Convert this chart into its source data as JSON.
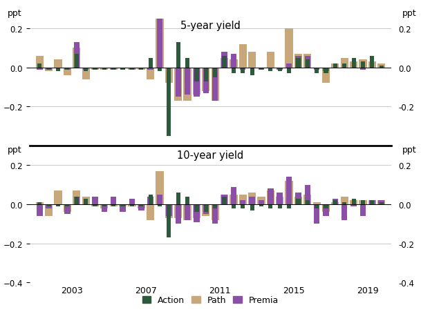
{
  "title1": "5-year yield",
  "title2": "10-year yield",
  "ylabel": "ppt",
  "colors": {
    "action": "#2d5a3d",
    "path": "#c8a87a",
    "premia": "#8b4fa8"
  },
  "x": [
    2001.25,
    2001.75,
    2002.25,
    2002.75,
    2003.25,
    2003.75,
    2004.25,
    2004.75,
    2005.25,
    2005.75,
    2006.25,
    2006.75,
    2007.25,
    2007.75,
    2008.25,
    2008.75,
    2009.25,
    2009.75,
    2010.25,
    2010.75,
    2011.25,
    2011.75,
    2012.25,
    2012.75,
    2013.25,
    2013.75,
    2014.25,
    2014.75,
    2015.25,
    2015.75,
    2016.25,
    2016.75,
    2017.25,
    2017.75,
    2018.25,
    2018.75,
    2019.25,
    2019.75
  ],
  "action_5y": [
    0.02,
    -0.01,
    -0.02,
    -0.01,
    0.07,
    -0.02,
    -0.01,
    -0.01,
    -0.01,
    -0.01,
    -0.01,
    -0.01,
    0.05,
    -0.02,
    -0.35,
    0.13,
    0.05,
    -0.07,
    -0.07,
    -0.05,
    0.06,
    -0.03,
    -0.03,
    -0.04,
    -0.01,
    -0.02,
    -0.02,
    -0.03,
    0.05,
    0.04,
    -0.03,
    -0.03,
    0.02,
    0.02,
    0.05,
    0.03,
    0.06,
    0.01
  ],
  "path_5y": [
    0.06,
    -0.02,
    0.04,
    -0.04,
    0.1,
    -0.06,
    -0.01,
    -0.01,
    -0.01,
    0.0,
    -0.01,
    -0.01,
    -0.06,
    0.25,
    -0.08,
    -0.17,
    -0.17,
    -0.14,
    -0.12,
    -0.17,
    0.05,
    0.04,
    0.12,
    0.08,
    0.0,
    0.08,
    0.0,
    0.2,
    0.07,
    0.07,
    0.0,
    -0.08,
    0.02,
    0.05,
    0.03,
    0.04,
    0.03,
    0.02
  ],
  "premia_5y": [
    -0.01,
    -0.01,
    0.0,
    -0.01,
    0.13,
    -0.01,
    0.0,
    0.0,
    -0.01,
    0.0,
    -0.01,
    0.0,
    -0.01,
    0.25,
    0.0,
    -0.15,
    -0.14,
    -0.15,
    -0.13,
    -0.17,
    0.08,
    0.07,
    -0.01,
    0.0,
    -0.01,
    0.0,
    -0.01,
    0.02,
    0.06,
    0.06,
    -0.01,
    -0.02,
    0.0,
    0.0,
    0.0,
    -0.01,
    0.0,
    0.0
  ],
  "action_10y": [
    0.01,
    -0.01,
    -0.01,
    -0.01,
    0.04,
    0.03,
    -0.01,
    -0.01,
    -0.01,
    -0.01,
    -0.01,
    -0.01,
    0.05,
    -0.01,
    -0.17,
    0.06,
    0.04,
    -0.04,
    -0.04,
    -0.02,
    0.04,
    -0.02,
    -0.02,
    -0.03,
    -0.01,
    -0.02,
    -0.02,
    -0.02,
    0.03,
    0.02,
    -0.02,
    -0.02,
    0.02,
    0.01,
    0.03,
    0.02,
    0.02,
    0.01
  ],
  "path_10y": [
    0.01,
    -0.06,
    0.07,
    -0.04,
    0.07,
    0.04,
    -0.01,
    -0.02,
    -0.01,
    -0.01,
    -0.01,
    -0.02,
    -0.08,
    0.17,
    -0.07,
    -0.07,
    -0.08,
    -0.07,
    -0.06,
    -0.08,
    0.05,
    0.05,
    0.05,
    0.06,
    0.04,
    0.07,
    0.04,
    0.12,
    0.04,
    0.05,
    0.01,
    -0.04,
    0.01,
    0.04,
    0.02,
    0.02,
    0.02,
    0.02
  ],
  "premia_10y": [
    -0.06,
    -0.02,
    0.0,
    -0.05,
    0.04,
    0.0,
    0.04,
    -0.04,
    0.04,
    -0.04,
    0.03,
    -0.03,
    0.04,
    0.05,
    -0.06,
    -0.1,
    -0.08,
    -0.09,
    -0.05,
    -0.1,
    0.05,
    0.09,
    0.02,
    0.04,
    0.02,
    0.08,
    0.06,
    0.14,
    0.06,
    0.1,
    -0.1,
    -0.06,
    0.03,
    -0.08,
    -0.01,
    -0.06,
    0.02,
    0.02
  ],
  "ylim1": [
    -0.4,
    0.3
  ],
  "ylim2": [
    -0.4,
    0.3
  ],
  "yticks1": [
    -0.2,
    0.0,
    0.2
  ],
  "yticks2": [
    -0.4,
    -0.2,
    0.0,
    0.2
  ],
  "xlim": [
    2000.7,
    2020.3
  ],
  "xticks": [
    2003,
    2007,
    2011,
    2015,
    2019
  ],
  "bar_width": 0.42,
  "background_color": "#ffffff",
  "grid_color": "#c0c0c0"
}
